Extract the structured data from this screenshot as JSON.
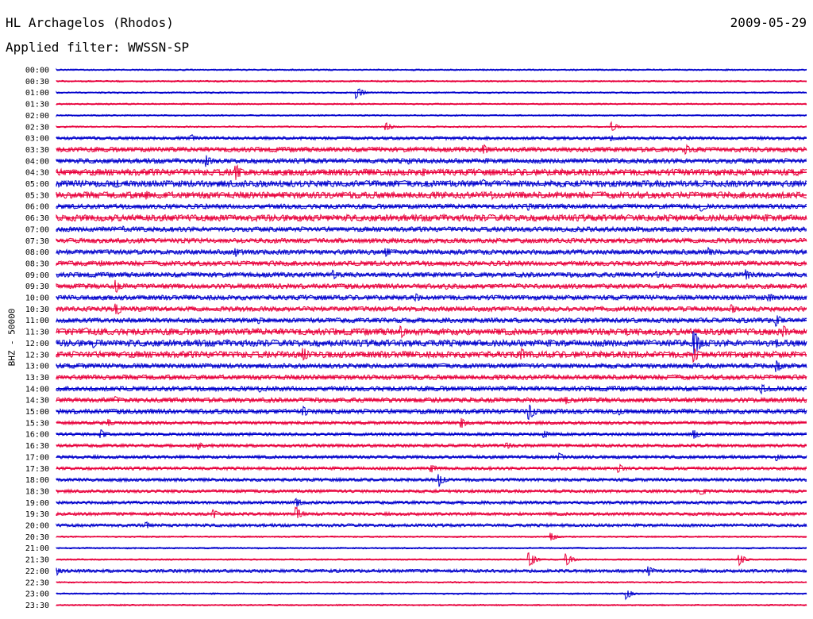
{
  "header": {
    "station": "HL Archagelos (Rhodos)",
    "date": "2009-05-29",
    "filter": "Applied filter: WWSSN-SP"
  },
  "chart_data": {
    "type": "line",
    "title": "HL Archagelos (Rhodos)",
    "subtitle": "Applied filter: WWSSN-SP",
    "ylabel": "BHZ - 50000",
    "xlabel": "",
    "row_labels": [
      "00:00",
      "00:30",
      "01:00",
      "01:30",
      "02:00",
      "02:30",
      "03:00",
      "03:30",
      "04:00",
      "04:30",
      "05:00",
      "05:30",
      "06:00",
      "06:30",
      "07:00",
      "07:30",
      "08:00",
      "08:30",
      "09:00",
      "09:30",
      "10:00",
      "10:30",
      "11:00",
      "11:30",
      "12:00",
      "12:30",
      "13:00",
      "13:30",
      "14:00",
      "14:30",
      "15:00",
      "15:30",
      "16:00",
      "16:30",
      "17:00",
      "17:30",
      "18:00",
      "18:30",
      "19:00",
      "19:30",
      "20:00",
      "20:30",
      "21:00",
      "21:30",
      "22:00",
      "22:30",
      "23:00",
      "23:30"
    ],
    "trace_colors": [
      "#0000cc",
      "#e8003c"
    ],
    "noise_level": [
      1,
      1,
      1,
      1,
      1,
      1,
      2,
      3,
      3,
      4,
      4,
      4,
      3,
      4,
      3,
      3,
      3,
      3,
      3,
      3,
      3,
      3,
      3,
      4,
      4,
      4,
      3,
      3,
      3,
      3,
      3,
      2,
      2,
      2,
      2,
      2,
      2,
      2,
      2,
      2,
      2,
      1,
      1,
      1,
      2,
      1,
      1,
      1
    ],
    "events": [
      {
        "row": "01:00",
        "t": 0.4,
        "amp": 8
      },
      {
        "row": "02:30",
        "t": 0.44,
        "amp": 5
      },
      {
        "row": "02:30",
        "t": 0.74,
        "amp": 6
      },
      {
        "row": "03:00",
        "t": 0.18,
        "amp": 5
      },
      {
        "row": "03:00",
        "t": 0.74,
        "amp": 4
      },
      {
        "row": "03:30",
        "t": 0.57,
        "amp": 7
      },
      {
        "row": "03:30",
        "t": 0.84,
        "amp": 6
      },
      {
        "row": "04:00",
        "t": 0.2,
        "amp": 8
      },
      {
        "row": "04:00",
        "t": 0.47,
        "amp": 4
      },
      {
        "row": "04:30",
        "t": 0.24,
        "amp": 10
      },
      {
        "row": "04:30",
        "t": 0.49,
        "amp": 5
      },
      {
        "row": "05:00",
        "t": 0.08,
        "amp": 6
      },
      {
        "row": "05:00",
        "t": 0.57,
        "amp": 6
      },
      {
        "row": "05:30",
        "t": 0.12,
        "amp": 6
      },
      {
        "row": "05:30",
        "t": 0.36,
        "amp": 4
      },
      {
        "row": "05:30",
        "t": 0.58,
        "amp": 6
      },
      {
        "row": "06:00",
        "t": 0.63,
        "amp": 5
      },
      {
        "row": "06:00",
        "t": 0.86,
        "amp": 6
      },
      {
        "row": "06:30",
        "t": 0.78,
        "amp": 4
      },
      {
        "row": "07:00",
        "t": 0.09,
        "amp": 4
      },
      {
        "row": "08:00",
        "t": 0.24,
        "amp": 6
      },
      {
        "row": "08:00",
        "t": 0.44,
        "amp": 7
      },
      {
        "row": "08:00",
        "t": 0.87,
        "amp": 6
      },
      {
        "row": "08:30",
        "t": 0.06,
        "amp": 4
      },
      {
        "row": "09:00",
        "t": 0.37,
        "amp": 6
      },
      {
        "row": "09:00",
        "t": 0.8,
        "amp": 5
      },
      {
        "row": "09:00",
        "t": 0.92,
        "amp": 7
      },
      {
        "row": "09:30",
        "t": 0.08,
        "amp": 8
      },
      {
        "row": "09:30",
        "t": 0.52,
        "amp": 4
      },
      {
        "row": "10:00",
        "t": 0.48,
        "amp": 5
      },
      {
        "row": "10:00",
        "t": 0.95,
        "amp": 6
      },
      {
        "row": "10:30",
        "t": 0.08,
        "amp": 9
      },
      {
        "row": "10:30",
        "t": 0.9,
        "amp": 6
      },
      {
        "row": "11:00",
        "t": 0.27,
        "amp": 5
      },
      {
        "row": "11:00",
        "t": 0.96,
        "amp": 8
      },
      {
        "row": "11:30",
        "t": 0.04,
        "amp": 7
      },
      {
        "row": "11:30",
        "t": 0.46,
        "amp": 8
      },
      {
        "row": "11:30",
        "t": 0.76,
        "amp": 6
      },
      {
        "row": "11:30",
        "t": 0.97,
        "amp": 8
      },
      {
        "row": "12:00",
        "t": 0.05,
        "amp": 6
      },
      {
        "row": "12:00",
        "t": 0.45,
        "amp": 5
      },
      {
        "row": "12:00",
        "t": 0.85,
        "amp": 18
      },
      {
        "row": "12:00",
        "t": 0.96,
        "amp": 6
      },
      {
        "row": "12:30",
        "t": 0.33,
        "amp": 9
      },
      {
        "row": "12:30",
        "t": 0.62,
        "amp": 8
      },
      {
        "row": "12:30",
        "t": 0.85,
        "amp": 10
      },
      {
        "row": "13:00",
        "t": 0.96,
        "amp": 8
      },
      {
        "row": "14:00",
        "t": 0.27,
        "amp": 5
      },
      {
        "row": "14:00",
        "t": 0.94,
        "amp": 7
      },
      {
        "row": "14:30",
        "t": 0.08,
        "amp": 5
      },
      {
        "row": "14:30",
        "t": 0.68,
        "amp": 6
      },
      {
        "row": "15:00",
        "t": 0.33,
        "amp": 7
      },
      {
        "row": "15:00",
        "t": 0.63,
        "amp": 12
      },
      {
        "row": "15:00",
        "t": 0.75,
        "amp": 5
      },
      {
        "row": "15:30",
        "t": 0.07,
        "amp": 5
      },
      {
        "row": "15:30",
        "t": 0.54,
        "amp": 7
      },
      {
        "row": "16:00",
        "t": 0.06,
        "amp": 7
      },
      {
        "row": "16:00",
        "t": 0.65,
        "amp": 6
      },
      {
        "row": "16:00",
        "t": 0.85,
        "amp": 6
      },
      {
        "row": "16:30",
        "t": 0.19,
        "amp": 5
      },
      {
        "row": "16:30",
        "t": 0.6,
        "amp": 5
      },
      {
        "row": "17:00",
        "t": 0.67,
        "amp": 6
      },
      {
        "row": "17:00",
        "t": 0.96,
        "amp": 5
      },
      {
        "row": "17:30",
        "t": 0.5,
        "amp": 6
      },
      {
        "row": "17:30",
        "t": 0.75,
        "amp": 6
      },
      {
        "row": "18:00",
        "t": 0.51,
        "amp": 9
      },
      {
        "row": "18:30",
        "t": 0.86,
        "amp": 6
      },
      {
        "row": "19:00",
        "t": 0.32,
        "amp": 6
      },
      {
        "row": "19:30",
        "t": 0.21,
        "amp": 6
      },
      {
        "row": "19:30",
        "t": 0.32,
        "amp": 9
      },
      {
        "row": "20:00",
        "t": 0.12,
        "amp": 5
      },
      {
        "row": "20:30",
        "t": 0.66,
        "amp": 5
      },
      {
        "row": "21:30",
        "t": 0.63,
        "amp": 10
      },
      {
        "row": "21:30",
        "t": 0.68,
        "amp": 8
      },
      {
        "row": "21:30",
        "t": 0.91,
        "amp": 8
      },
      {
        "row": "22:00",
        "t": 0.0,
        "amp": 6
      },
      {
        "row": "22:00",
        "t": 0.79,
        "amp": 6
      },
      {
        "row": "23:00",
        "t": 0.76,
        "amp": 7
      }
    ]
  }
}
